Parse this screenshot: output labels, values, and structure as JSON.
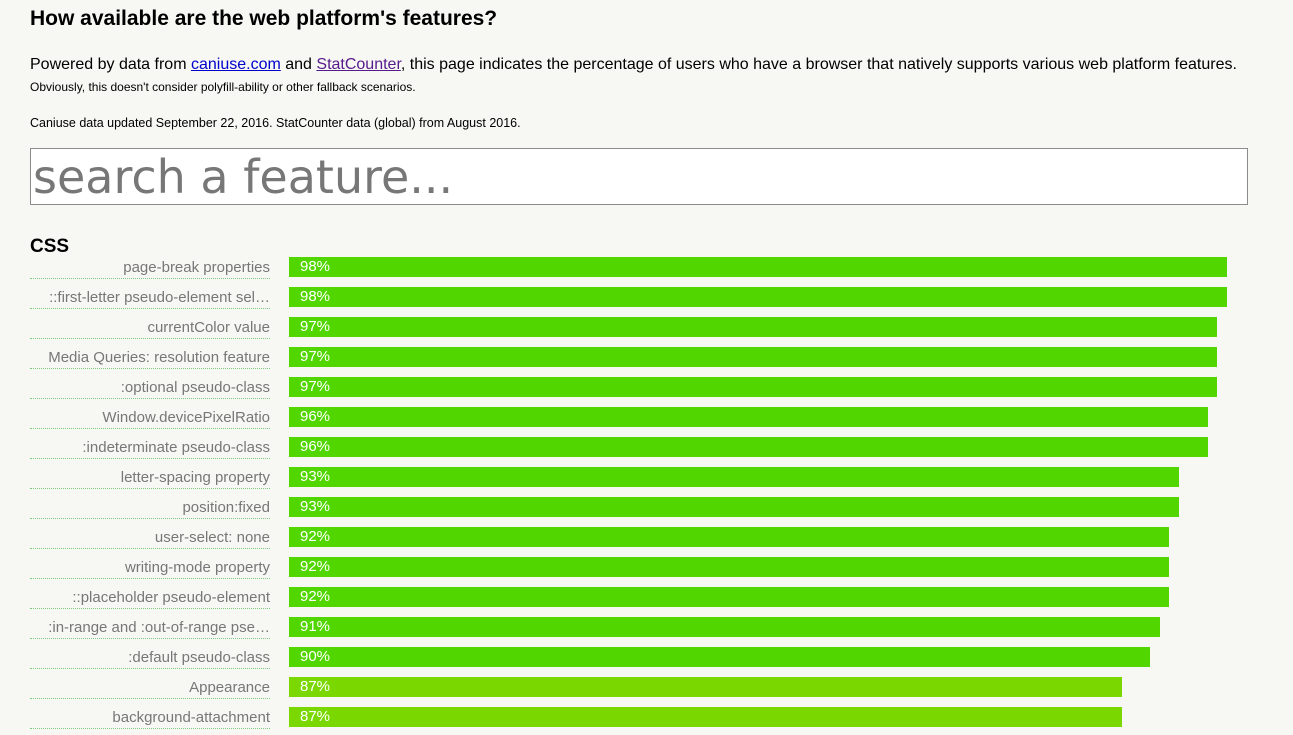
{
  "header": {
    "title": "How available are the web platform's features?"
  },
  "intro": {
    "prefix": "Powered by data from ",
    "link1": "caniuse.com",
    "middle": " and ",
    "link2": "StatCounter",
    "suffix": ", this page indicates the percentage of users who have a browser that natively supports various web platform features.",
    "note": "Obviously, this doesn't consider polyfill-ability or other fallback scenarios.",
    "updated": "Caniuse data updated September 22, 2016. StatCounter data (global) from August 2016."
  },
  "search": {
    "placeholder": "search a feature..."
  },
  "section": {
    "title": "CSS"
  },
  "chart_data": {
    "type": "bar",
    "orientation": "horizontal",
    "categories": [
      "page-break properties",
      "::first-letter pseudo-element sel…",
      "currentColor value",
      "Media Queries: resolution feature",
      ":optional pseudo-class",
      "Window.devicePixelRatio",
      ":indeterminate pseudo-class",
      "letter-spacing property",
      "position:fixed",
      "user-select: none",
      "writing-mode property",
      "::placeholder pseudo-element",
      ":in-range and :out-of-range pse…",
      ":default pseudo-class",
      "Appearance",
      "background-attachment"
    ],
    "values": [
      98,
      98,
      97,
      97,
      97,
      96,
      96,
      93,
      93,
      92,
      92,
      92,
      91,
      90,
      87,
      87
    ],
    "value_labels": [
      "98%",
      "98%",
      "97%",
      "97%",
      "97%",
      "96%",
      "96%",
      "93%",
      "93%",
      "92%",
      "92%",
      "92%",
      "91%",
      "90%",
      "87%",
      "87%"
    ],
    "xlim": [
      0,
      100
    ],
    "bar_color": "#52d600",
    "bar_color_low": "#7ad800"
  }
}
